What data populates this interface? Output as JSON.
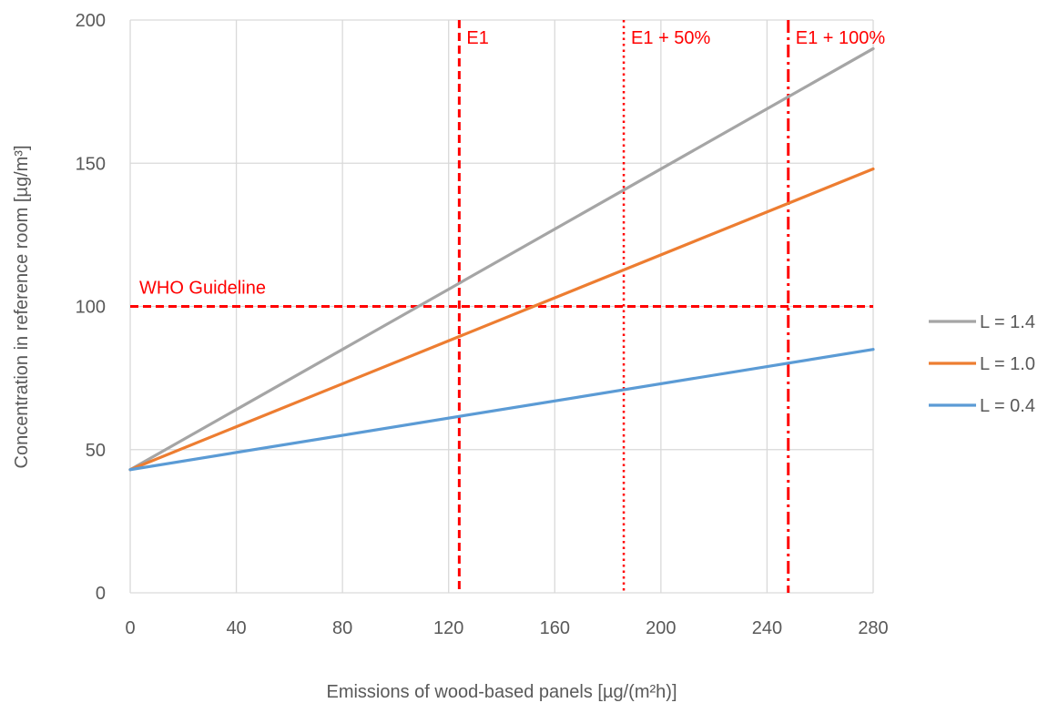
{
  "chart_data": {
    "type": "line",
    "xlabel": "Emissions of wood-based panels [µg/(m²h)]",
    "ylabel": "Concentration in reference room [µg/m³]",
    "xlim": [
      0,
      280
    ],
    "ylim": [
      0,
      200
    ],
    "x_ticks": [
      0,
      40,
      80,
      120,
      160,
      200,
      240,
      280
    ],
    "y_ticks": [
      0,
      50,
      100,
      150,
      200
    ],
    "grid": true,
    "legend_position": "right",
    "series": [
      {
        "name": "L = 1.4",
        "color": "#a5a5a5",
        "x": [
          0,
          280
        ],
        "y": [
          43,
          190
        ]
      },
      {
        "name": "L = 1.0",
        "color": "#ed7d31",
        "x": [
          0,
          280
        ],
        "y": [
          43,
          148
        ]
      },
      {
        "name": "L = 0.4",
        "color": "#5b9bd5",
        "x": [
          0,
          280
        ],
        "y": [
          43,
          85
        ]
      }
    ],
    "reference_lines": [
      {
        "label": "WHO Guideline",
        "orientation": "horizontal",
        "value": 100,
        "style": "dashed",
        "color": "#ff0000"
      },
      {
        "label": "E1",
        "orientation": "vertical",
        "value": 124,
        "style": "dashed",
        "color": "#ff0000"
      },
      {
        "label": "E1 + 50%",
        "orientation": "vertical",
        "value": 186,
        "style": "dotted",
        "color": "#ff0000"
      },
      {
        "label": "E1 + 100%",
        "orientation": "vertical",
        "value": 248,
        "style": "dashdot",
        "color": "#ff0000"
      }
    ]
  }
}
